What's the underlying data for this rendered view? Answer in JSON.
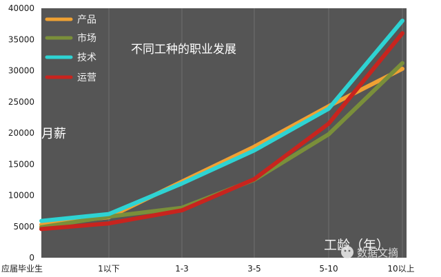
{
  "chart_data": {
    "type": "line",
    "title": "不同工种的职业发展",
    "ylabel": "月薪",
    "xlabel": "工龄（年）",
    "categories": [
      "应届毕业生",
      "1以下",
      "1-3",
      "3-5",
      "5-10",
      "10以上"
    ],
    "ylim": [
      0,
      40000
    ],
    "yticks": [
      0,
      5000,
      10000,
      15000,
      20000,
      25000,
      30000,
      35000,
      40000
    ],
    "grid": "x-only",
    "legend": "top-left",
    "background": "#555555",
    "series": [
      {
        "name": "产品",
        "color": "#f0a133",
        "values": [
          5300,
          6500,
          12200,
          17800,
          24300,
          30300
        ]
      },
      {
        "name": "市场",
        "color": "#7a8f3a",
        "values": [
          4900,
          6600,
          8000,
          12500,
          19800,
          31200
        ]
      },
      {
        "name": "技术",
        "color": "#2ed3d3",
        "values": [
          5900,
          7000,
          11900,
          17200,
          23900,
          38000
        ]
      },
      {
        "name": "运营",
        "color": "#c8241e",
        "values": [
          4600,
          5500,
          7600,
          12600,
          21500,
          36000
        ]
      }
    ]
  },
  "watermark": {
    "text": "数据文摘",
    "icon": "wechat-icon"
  }
}
